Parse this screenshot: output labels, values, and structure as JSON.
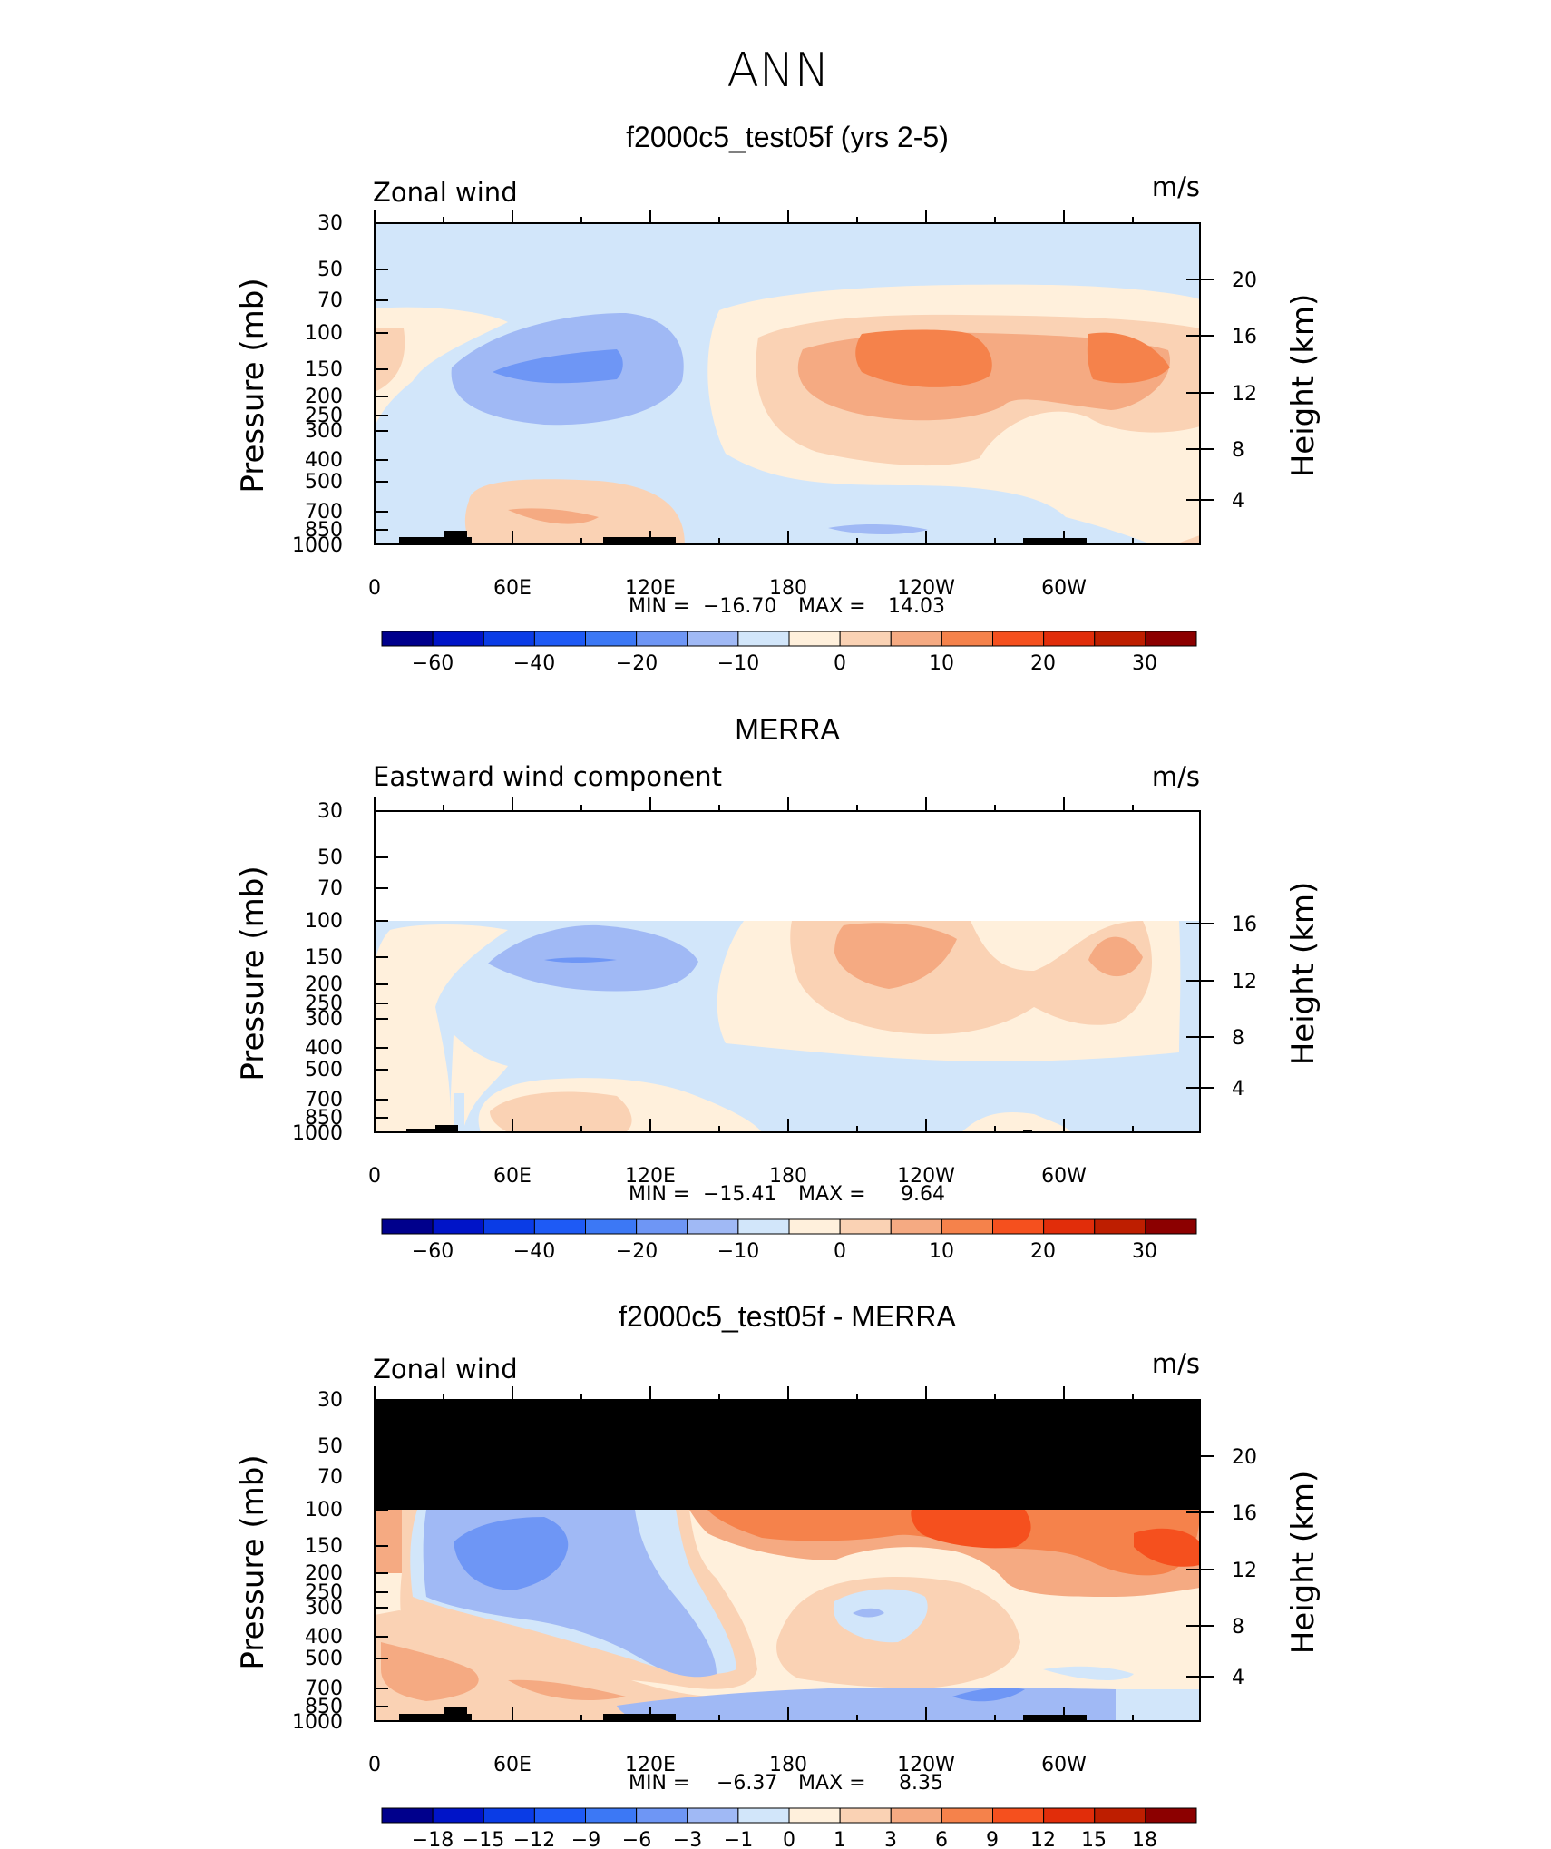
{
  "page_title": "ANN",
  "chart_data": [
    {
      "type": "contour",
      "title": "f2000c5_test05f (yrs 2-5)",
      "field_label": "Zonal wind",
      "units": "m/s",
      "ylabel": "Pressure (mb)",
      "ylabel_right": "Height (km)",
      "x_ticks": [
        "0",
        "60E",
        "120E",
        "180",
        "120W",
        "60W"
      ],
      "y_ticks": [
        "30",
        "50",
        "70",
        "100",
        "150",
        "200",
        "250",
        "300",
        "400",
        "500",
        "700",
        "850",
        "1000"
      ],
      "height_ticks": [
        "20",
        "16",
        "12",
        "8",
        "4"
      ],
      "min_label": "MIN =",
      "min_value": "−16.70",
      "max_label": "MAX =",
      "max_value": "14.03",
      "colorbar_levels": [
        "−60",
        "−40",
        "−20",
        "−10",
        "0",
        "10",
        "20",
        "30"
      ],
      "colors": [
        "#00008c",
        "#0014c8",
        "#0a3ce6",
        "#1e5af5",
        "#3c78f5",
        "#6e96f5",
        "#a0b9f5",
        "#d2e6fa",
        "#fff0dc",
        "#fad2b4",
        "#f5aa82",
        "#f5824b",
        "#f5501e",
        "#e12d0a",
        "#be1e00",
        "#8c0000"
      ]
    },
    {
      "type": "contour",
      "title": "MERRA",
      "field_label": "Eastward wind component",
      "units": "m/s",
      "ylabel": "Pressure (mb)",
      "ylabel_right": "Height (km)",
      "x_ticks": [
        "0",
        "60E",
        "120E",
        "180",
        "120W",
        "60W"
      ],
      "y_ticks": [
        "30",
        "50",
        "70",
        "100",
        "150",
        "200",
        "250",
        "300",
        "400",
        "500",
        "700",
        "850",
        "1000"
      ],
      "height_ticks": [
        "16",
        "12",
        "8",
        "4"
      ],
      "min_label": "MIN =",
      "min_value": "−15.41",
      "max_label": "MAX =",
      "max_value": "9.64",
      "colorbar_levels": [
        "−60",
        "−40",
        "−20",
        "−10",
        "0",
        "10",
        "20",
        "30"
      ],
      "colors": [
        "#00008c",
        "#0014c8",
        "#0a3ce6",
        "#1e5af5",
        "#3c78f5",
        "#6e96f5",
        "#a0b9f5",
        "#d2e6fa",
        "#fff0dc",
        "#fad2b4",
        "#f5aa82",
        "#f5824b",
        "#f5501e",
        "#e12d0a",
        "#be1e00",
        "#8c0000"
      ]
    },
    {
      "type": "contour",
      "title": "f2000c5_test05f - MERRA",
      "field_label": "Zonal wind",
      "units": "m/s",
      "ylabel": "Pressure (mb)",
      "ylabel_right": "Height (km)",
      "x_ticks": [
        "0",
        "60E",
        "120E",
        "180",
        "120W",
        "60W"
      ],
      "y_ticks": [
        "30",
        "50",
        "70",
        "100",
        "150",
        "200",
        "250",
        "300",
        "400",
        "500",
        "700",
        "850",
        "1000"
      ],
      "height_ticks": [
        "20",
        "16",
        "12",
        "8",
        "4"
      ],
      "min_label": "MIN =",
      "min_value": "−6.37",
      "max_label": "MAX =",
      "max_value": "8.35",
      "colorbar_levels": [
        "−18",
        "−15",
        "−12",
        "−9",
        "−6",
        "−3",
        "−1",
        "0",
        "1",
        "3",
        "6",
        "9",
        "12",
        "15",
        "18"
      ],
      "colors": [
        "#00008c",
        "#0014c8",
        "#0a3ce6",
        "#1e5af5",
        "#3c78f5",
        "#6e96f5",
        "#a0b9f5",
        "#d2e6fa",
        "#fff0dc",
        "#fad2b4",
        "#f5aa82",
        "#f5824b",
        "#f5501e",
        "#e12d0a",
        "#be1e00",
        "#8c0000"
      ]
    }
  ]
}
